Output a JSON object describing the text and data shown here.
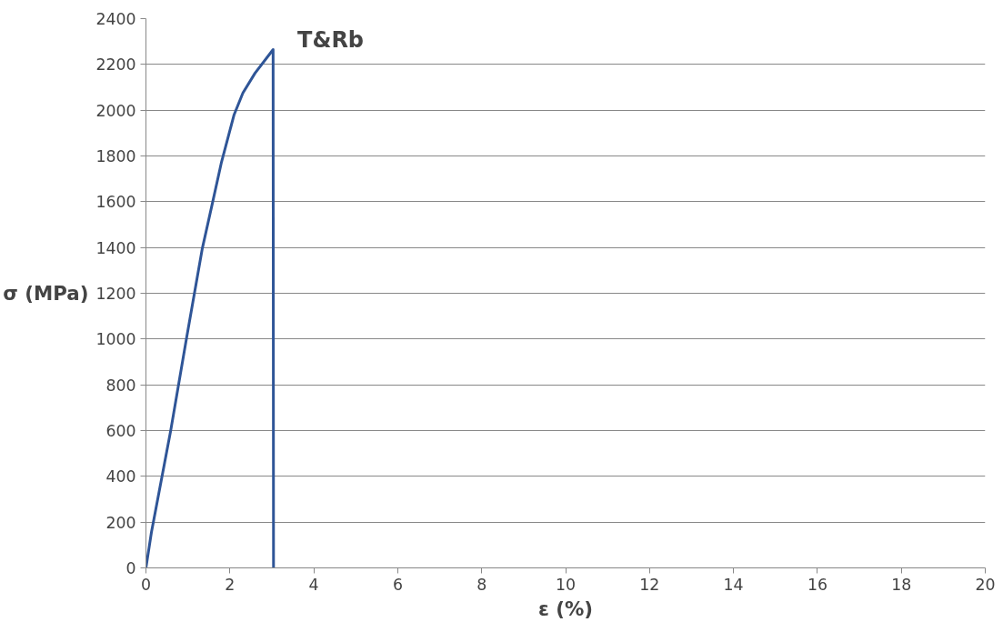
{
  "chart_data": {
    "type": "line",
    "title": "T&Rb",
    "xlabel": "ε (%)",
    "ylabel": "σ (MPa)",
    "x": [
      0,
      0.13,
      0.59,
      0.96,
      1.34,
      1.59,
      1.8,
      2.1,
      2.31,
      2.6,
      3.03,
      3.04
    ],
    "series": [
      {
        "color": "#2f5597",
        "values": [
          0,
          155,
          600,
          996,
          1393,
          1599,
          1773,
          1980,
          2075,
          2162,
          2265,
          0
        ]
      }
    ],
    "xlim": [
      0,
      20
    ],
    "xticks": [
      0,
      2,
      4,
      6,
      8,
      10,
      12,
      14,
      16,
      18,
      20
    ],
    "ylim": [
      0,
      2400
    ],
    "yticks": [
      0,
      200,
      400,
      600,
      800,
      1000,
      1200,
      1400,
      1600,
      1800,
      2000,
      2200,
      2400
    ],
    "grid": "y",
    "marker": "none",
    "line_style": "solid"
  }
}
